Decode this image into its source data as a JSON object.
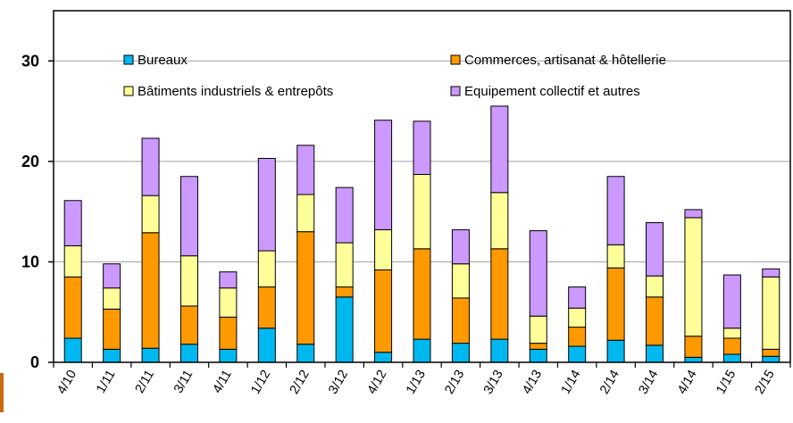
{
  "chart_data": {
    "type": "bar",
    "stacked": true,
    "title": "",
    "xlabel": "",
    "ylabel": "",
    "ylim": [
      0,
      35
    ],
    "yticks": [
      0,
      10,
      20,
      30
    ],
    "grid": "horizontal",
    "legend_position": "top",
    "categories": [
      "4/10",
      "1/11",
      "2/11",
      "3/11",
      "4/11",
      "1/12",
      "2/12",
      "3/12",
      "4/12",
      "1/13",
      "2/13",
      "3/13",
      "4/13",
      "1/14",
      "2/14",
      "3/14",
      "4/14",
      "1/15",
      "2/15"
    ],
    "series": [
      {
        "name": "Bureaux",
        "color": "#00b8f0",
        "values": [
          2.4,
          1.3,
          1.4,
          1.8,
          1.3,
          3.4,
          1.8,
          6.5,
          1.0,
          2.3,
          1.9,
          2.3,
          1.3,
          1.6,
          2.2,
          1.7,
          0.5,
          0.8,
          0.6
        ]
      },
      {
        "name": "Commerces, artisanat & hôtellerie",
        "color": "#ff9900",
        "values": [
          6.1,
          4.0,
          11.5,
          3.8,
          3.2,
          4.1,
          11.2,
          1.0,
          8.2,
          9.0,
          4.5,
          9.0,
          0.6,
          1.9,
          7.2,
          4.8,
          2.1,
          1.6,
          0.7
        ]
      },
      {
        "name": "Bâtiments  industriels & entrepôts",
        "color": "#ffff99",
        "values": [
          3.1,
          2.1,
          3.7,
          5.0,
          2.9,
          3.6,
          3.7,
          4.4,
          4.0,
          7.4,
          3.4,
          5.6,
          2.7,
          1.9,
          2.3,
          2.1,
          11.8,
          1.0,
          7.2
        ]
      },
      {
        "name": "Equipement collectif et autres",
        "color": "#cc99ff",
        "values": [
          4.5,
          2.4,
          5.7,
          7.9,
          1.6,
          9.2,
          4.9,
          5.5,
          10.9,
          5.3,
          3.4,
          8.6,
          8.5,
          2.1,
          6.8,
          5.3,
          0.8,
          5.3,
          0.8
        ]
      }
    ]
  }
}
